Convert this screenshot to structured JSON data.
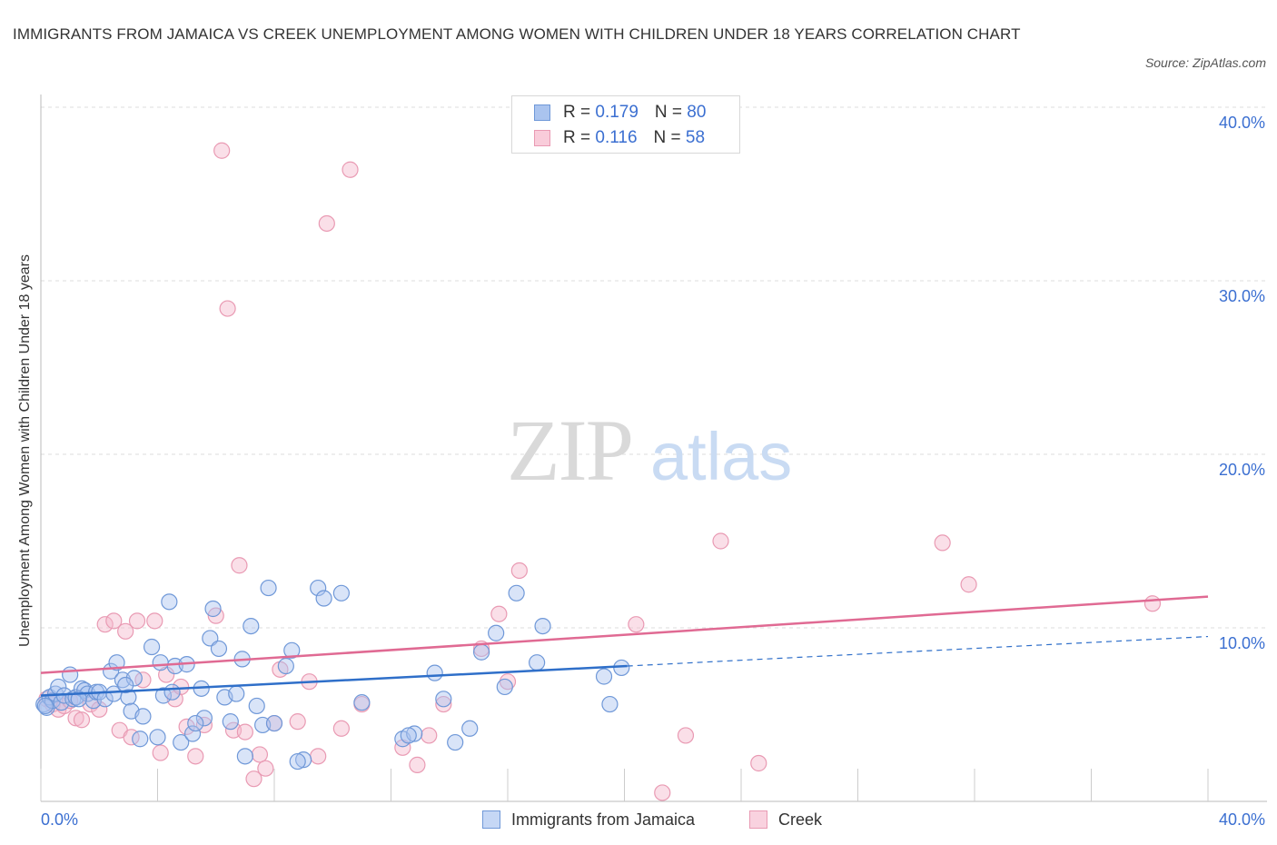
{
  "title": "IMMIGRANTS FROM JAMAICA VS CREEK UNEMPLOYMENT AMONG WOMEN WITH CHILDREN UNDER 18 YEARS CORRELATION CHART",
  "source": "Source: ZipAtlas.com",
  "watermark": {
    "zip": "ZIP",
    "atlas": "atlas"
  },
  "legend": {
    "rows": [
      {
        "r_label": "R = ",
        "r_value": "0.179",
        "n_label": "N = ",
        "n_value": "80"
      },
      {
        "r_label": "R = ",
        "r_value": "0.116",
        "n_label": "N = ",
        "n_value": "58"
      }
    ]
  },
  "bottom_legend": [
    "Immigrants from Jamaica",
    "Creek"
  ],
  "colors": {
    "blue_fill": "#aac4ef",
    "blue_stroke": "#6f98d8",
    "blue_line": "#2f6fc9",
    "pink_fill": "#f5b8cb",
    "pink_stroke": "#e99ab3",
    "pink_line": "#e06a93",
    "axis_text": "#3b6fd1",
    "grid": "#dcdcdc"
  },
  "chart_data": {
    "type": "scatter",
    "title": "IMMIGRANTS FROM JAMAICA VS CREEK UNEMPLOYMENT AMONG WOMEN WITH CHILDREN UNDER 18 YEARS CORRELATION CHART",
    "xlabel": "",
    "ylabel": "Unemployment Among Women with Children Under 18 years",
    "xlim": [
      0,
      40
    ],
    "ylim": [
      0,
      40
    ],
    "x_tick_labels": [
      "0.0%",
      "40.0%"
    ],
    "y_ticks": [
      10,
      20,
      30,
      40
    ],
    "y_tick_labels": [
      "10.0%",
      "20.0%",
      "30.0%",
      "40.0%"
    ],
    "grid": true,
    "legend_position": "top-center",
    "series": [
      {
        "name": "Immigrants from Jamaica",
        "R": 0.179,
        "N": 80,
        "trend": {
          "x": [
            0,
            20.1
          ],
          "y": [
            6.1,
            7.8
          ],
          "dashed_to": [
            40,
            9.5
          ]
        },
        "points": [
          [
            0.1,
            5.6
          ],
          [
            0.2,
            5.4
          ],
          [
            0.3,
            6.0
          ],
          [
            0.4,
            5.8
          ],
          [
            0.5,
            6.2
          ],
          [
            0.6,
            6.6
          ],
          [
            0.7,
            5.7
          ],
          [
            0.8,
            6.1
          ],
          [
            1.0,
            7.3
          ],
          [
            1.1,
            5.9
          ],
          [
            1.2,
            6.0
          ],
          [
            1.4,
            6.5
          ],
          [
            1.5,
            6.4
          ],
          [
            1.6,
            6.2
          ],
          [
            1.8,
            5.8
          ],
          [
            1.9,
            6.3
          ],
          [
            2.0,
            6.3
          ],
          [
            2.2,
            5.9
          ],
          [
            2.4,
            7.5
          ],
          [
            2.5,
            6.2
          ],
          [
            2.6,
            8.0
          ],
          [
            2.8,
            7.0
          ],
          [
            3.0,
            6.0
          ],
          [
            3.1,
            5.2
          ],
          [
            3.2,
            7.1
          ],
          [
            3.4,
            3.6
          ],
          [
            3.5,
            4.9
          ],
          [
            3.8,
            8.9
          ],
          [
            4.0,
            3.7
          ],
          [
            4.2,
            6.1
          ],
          [
            4.4,
            11.5
          ],
          [
            4.5,
            6.3
          ],
          [
            4.6,
            7.8
          ],
          [
            4.8,
            3.4
          ],
          [
            5.0,
            7.9
          ],
          [
            5.2,
            3.9
          ],
          [
            5.5,
            6.5
          ],
          [
            5.6,
            4.8
          ],
          [
            5.8,
            9.4
          ],
          [
            5.9,
            11.1
          ],
          [
            6.1,
            8.8
          ],
          [
            6.3,
            6.0
          ],
          [
            6.5,
            4.6
          ],
          [
            6.7,
            6.2
          ],
          [
            6.9,
            8.2
          ],
          [
            7.2,
            10.1
          ],
          [
            7.4,
            5.5
          ],
          [
            7.6,
            4.4
          ],
          [
            7.8,
            12.3
          ],
          [
            8.0,
            4.5
          ],
          [
            8.4,
            7.8
          ],
          [
            8.6,
            8.7
          ],
          [
            9.0,
            2.4
          ],
          [
            9.5,
            12.3
          ],
          [
            9.7,
            11.7
          ],
          [
            10.3,
            12.0
          ],
          [
            11.0,
            5.7
          ],
          [
            12.4,
            3.6
          ],
          [
            12.8,
            3.9
          ],
          [
            13.5,
            7.4
          ],
          [
            13.8,
            5.9
          ],
          [
            14.2,
            3.4
          ],
          [
            14.7,
            4.2
          ],
          [
            15.1,
            8.6
          ],
          [
            15.6,
            9.7
          ],
          [
            15.9,
            6.6
          ],
          [
            16.3,
            12.0
          ],
          [
            17.0,
            8.0
          ],
          [
            17.2,
            10.1
          ],
          [
            19.3,
            7.2
          ],
          [
            19.5,
            5.6
          ],
          [
            19.9,
            7.7
          ],
          [
            0.15,
            5.5
          ],
          [
            1.3,
            5.9
          ],
          [
            2.9,
            6.7
          ],
          [
            4.1,
            8.0
          ],
          [
            5.3,
            4.5
          ],
          [
            7.0,
            2.6
          ],
          [
            8.8,
            2.3
          ],
          [
            12.6,
            3.8
          ]
        ]
      },
      {
        "name": "Creek",
        "R": 0.116,
        "N": 58,
        "trend": {
          "x": [
            0,
            40
          ],
          "y": [
            7.4,
            11.8
          ]
        },
        "points": [
          [
            0.2,
            5.9
          ],
          [
            0.4,
            5.6
          ],
          [
            0.6,
            5.3
          ],
          [
            0.8,
            5.5
          ],
          [
            1.0,
            5.8
          ],
          [
            1.2,
            4.8
          ],
          [
            1.4,
            4.7
          ],
          [
            1.7,
            5.6
          ],
          [
            2.0,
            5.3
          ],
          [
            2.2,
            10.2
          ],
          [
            2.5,
            10.4
          ],
          [
            2.7,
            4.1
          ],
          [
            2.9,
            9.8
          ],
          [
            3.1,
            3.7
          ],
          [
            3.3,
            10.4
          ],
          [
            3.5,
            7.0
          ],
          [
            3.9,
            10.4
          ],
          [
            4.1,
            2.8
          ],
          [
            4.3,
            7.3
          ],
          [
            4.6,
            5.9
          ],
          [
            4.8,
            6.6
          ],
          [
            5.0,
            4.3
          ],
          [
            5.3,
            2.6
          ],
          [
            5.6,
            4.4
          ],
          [
            6.0,
            10.7
          ],
          [
            6.2,
            37.5
          ],
          [
            6.4,
            28.4
          ],
          [
            6.6,
            4.1
          ],
          [
            6.8,
            13.6
          ],
          [
            7.0,
            4.0
          ],
          [
            7.3,
            1.3
          ],
          [
            7.5,
            2.7
          ],
          [
            7.7,
            1.9
          ],
          [
            8.0,
            4.5
          ],
          [
            8.2,
            7.6
          ],
          [
            8.8,
            4.6
          ],
          [
            9.2,
            6.9
          ],
          [
            9.5,
            2.6
          ],
          [
            9.8,
            33.3
          ],
          [
            10.3,
            4.2
          ],
          [
            10.6,
            36.4
          ],
          [
            11.0,
            5.6
          ],
          [
            12.4,
            3.1
          ],
          [
            12.9,
            2.1
          ],
          [
            13.3,
            3.8
          ],
          [
            13.8,
            5.6
          ],
          [
            15.1,
            8.8
          ],
          [
            15.7,
            10.8
          ],
          [
            16.0,
            6.9
          ],
          [
            16.4,
            13.3
          ],
          [
            20.4,
            10.2
          ],
          [
            21.3,
            0.5
          ],
          [
            22.1,
            3.8
          ],
          [
            23.3,
            15.0
          ],
          [
            24.6,
            2.2
          ],
          [
            30.9,
            14.9
          ],
          [
            31.8,
            12.5
          ],
          [
            38.1,
            11.4
          ]
        ]
      }
    ]
  }
}
